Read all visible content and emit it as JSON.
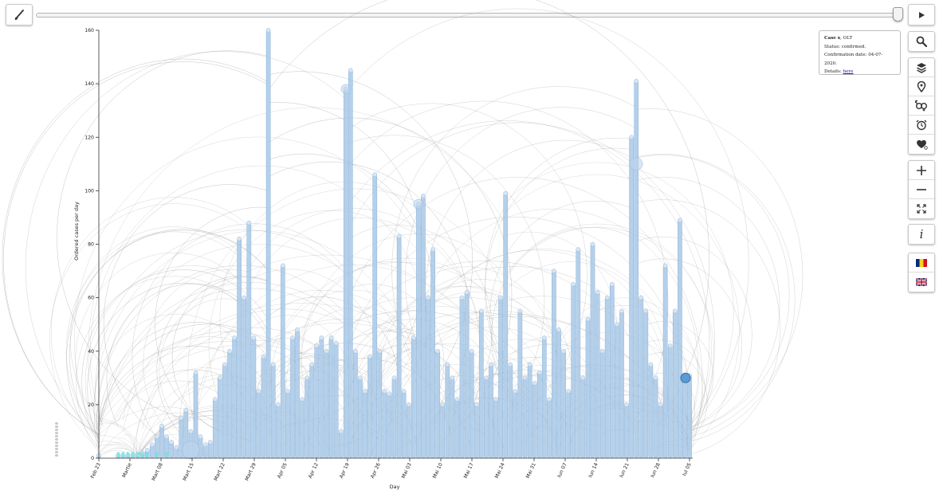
{
  "controls": {
    "brush": "brush-icon",
    "play": "play-icon",
    "slider_value": 1.0
  },
  "info_box": {
    "case_label": "Case x",
    "case_code": ", OLT",
    "status": "Status: confirmed.",
    "confirmation": "Confirmation date: 04-07-2020.",
    "details_label": "Details: ",
    "details_link": "here"
  },
  "toolbar": {
    "search": "search-icon",
    "group1": [
      "layers-icon",
      "location-pin-icon",
      "gender-icon",
      "alarm-clock-icon",
      "heart-icon"
    ],
    "group2": [
      "zoom-in-icon",
      "zoom-out-icon",
      "fit-screen-icon"
    ],
    "group3": [
      "info-icon"
    ],
    "group4": [
      "romanian-flag-icon",
      "uk-flag-icon"
    ],
    "info_glyph": "i"
  },
  "chart_data": {
    "type": "bar",
    "xlabel": "Day",
    "ylabel": "Ordered cases per day",
    "ylim": [
      0,
      160
    ],
    "yticks": [
      0,
      20,
      40,
      60,
      80,
      100,
      120,
      140,
      160
    ],
    "xticks": [
      "Feb 23",
      "Martie",
      "Mart 08",
      "Mart 15",
      "Mart 22",
      "Mart 29",
      "Apr 05",
      "Apr 12",
      "Apr 19",
      "Apr 26",
      "Mai 03",
      "Mai 10",
      "Mai 17",
      "Mai 24",
      "Mai 31",
      "Iun 07",
      "Iun 14",
      "Iun 21",
      "Iun 28",
      "Iul 05"
    ],
    "values": [
      1,
      0,
      0,
      0,
      1,
      1,
      1,
      1,
      1,
      2,
      3,
      5,
      8,
      12,
      8,
      6,
      4,
      15,
      18,
      10,
      32,
      8,
      5,
      6,
      22,
      30,
      35,
      40,
      45,
      82,
      60,
      88,
      45,
      25,
      38,
      160,
      35,
      20,
      72,
      25,
      45,
      48,
      22,
      30,
      35,
      42,
      45,
      40,
      45,
      43,
      10,
      138,
      145,
      40,
      30,
      25,
      38,
      106,
      40,
      25,
      24,
      30,
      83,
      25,
      20,
      45,
      95,
      98,
      60,
      78,
      40,
      20,
      35,
      30,
      22,
      60,
      62,
      40,
      20,
      55,
      30,
      35,
      22,
      60,
      99,
      35,
      25,
      55,
      30,
      35,
      28,
      32,
      45,
      22,
      70,
      48,
      40,
      25,
      65,
      78,
      30,
      52,
      80,
      62,
      40,
      60,
      65,
      50,
      55,
      20,
      120,
      141,
      60,
      55,
      35,
      30,
      20,
      72,
      42,
      55,
      89,
      30,
      31
    ],
    "marker_colors": {
      "bar": "#a8c8e6",
      "marker": "#5b9bd5",
      "highlight": "#6fe3e0",
      "arcs": "#8c8c8c"
    },
    "highlight_point": {
      "x": "Iul 04",
      "y": 30
    }
  }
}
